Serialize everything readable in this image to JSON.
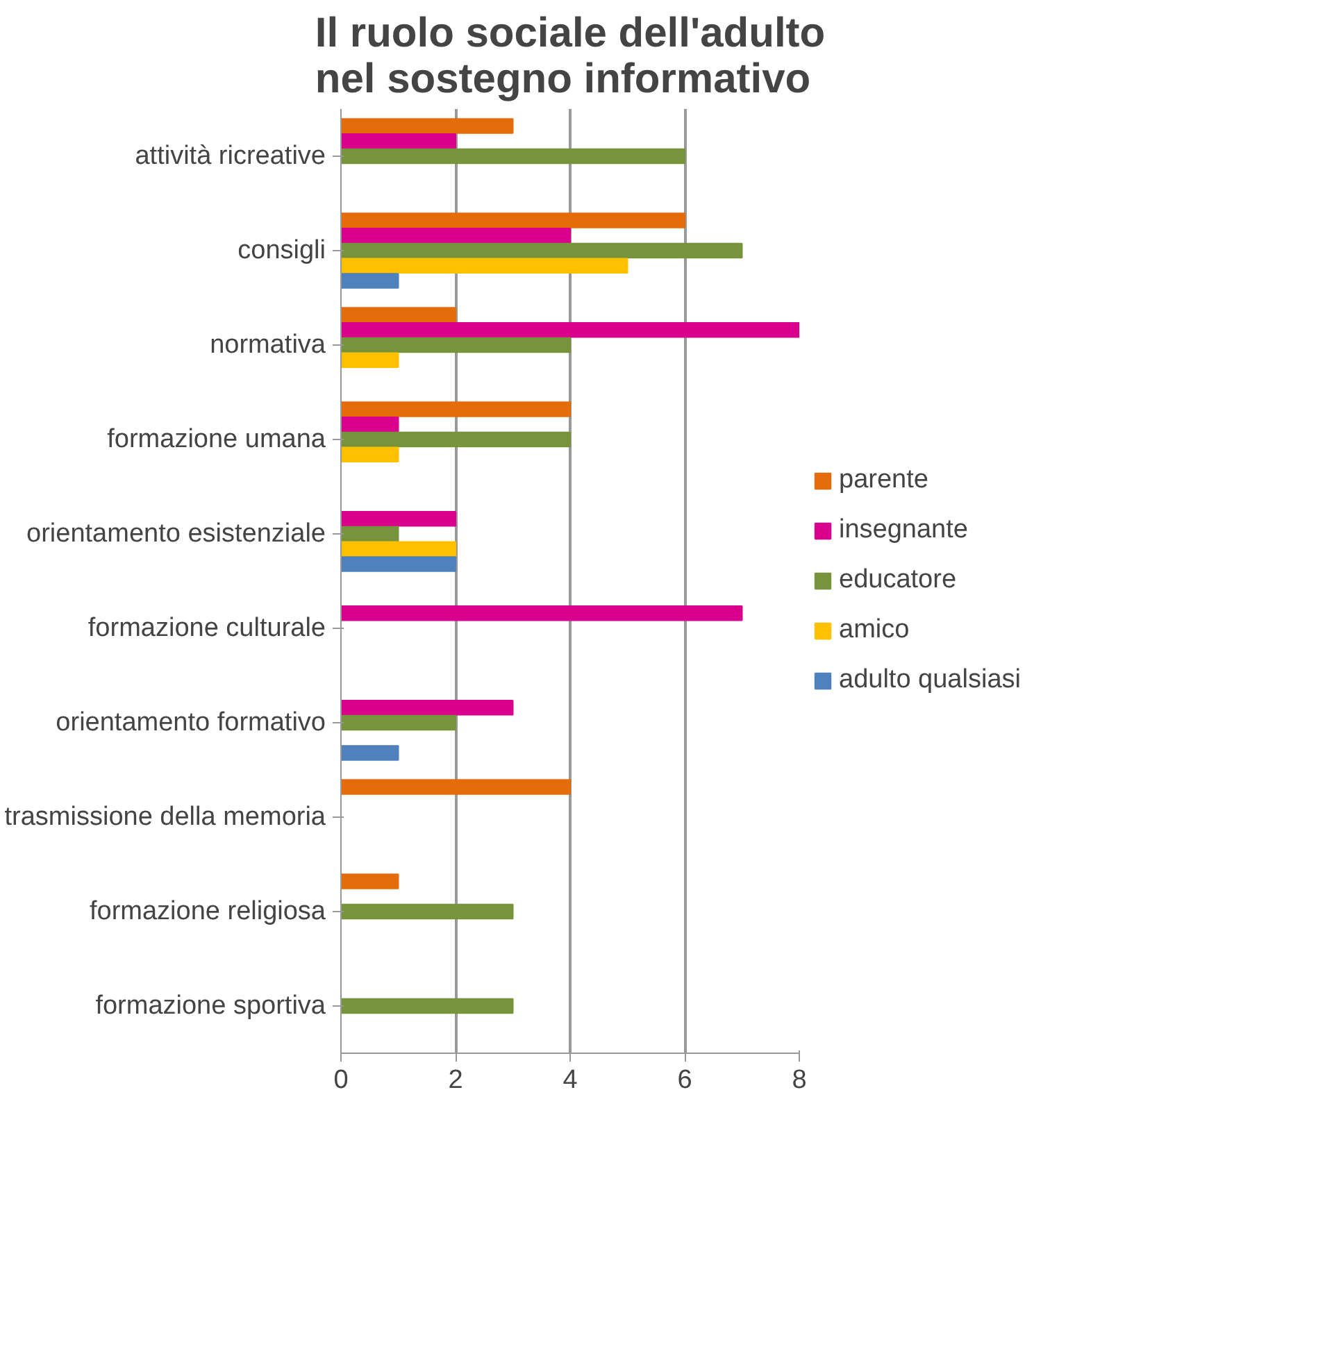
{
  "chart_data": {
    "type": "bar",
    "orientation": "horizontal",
    "title": "Il ruolo sociale dell'adulto nel sostegno informativo",
    "categories": [
      "attività ricreative",
      "consigli",
      "normativa",
      "formazione umana",
      "orientamento esistenziale",
      "formazione culturale",
      "orientamento formativo",
      "trasmissione della memoria",
      "formazione religiosa",
      "formazione sportiva"
    ],
    "series": [
      {
        "name": "parente",
        "color": "#e46c0a",
        "values": [
          3,
          6,
          2,
          4,
          0,
          0,
          0,
          4,
          1,
          0
        ]
      },
      {
        "name": "insegnante",
        "color": "#d9008d",
        "values": [
          2,
          4,
          8,
          1,
          2,
          7,
          3,
          0,
          0,
          0
        ]
      },
      {
        "name": "educatore",
        "color": "#77933c",
        "values": [
          6,
          7,
          4,
          4,
          1,
          null,
          2,
          null,
          3,
          3
        ]
      },
      {
        "name": "amico",
        "color": "#ffc000",
        "values": [
          null,
          5,
          1,
          1,
          2,
          null,
          null,
          null,
          null,
          null
        ]
      },
      {
        "name": "adulto qualsiasi",
        "color": "#4f81bd",
        "values": [
          null,
          1,
          0,
          0,
          2,
          0,
          1,
          0,
          0,
          0
        ]
      }
    ],
    "xlim": [
      0,
      8
    ],
    "xticks": [
      0,
      2,
      4,
      6,
      8
    ],
    "grid": "x",
    "legend": "right"
  }
}
